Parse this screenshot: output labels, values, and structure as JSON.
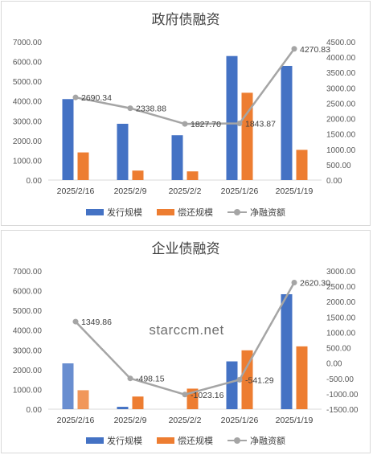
{
  "watermark": "starccm.net",
  "chart_data": [
    {
      "type": "bar",
      "title": "政府债融资",
      "categories": [
        "2025/2/16",
        "2025/2/9",
        "2025/2/2",
        "2025/1/26",
        "2025/1/19"
      ],
      "series": [
        {
          "name": "发行规模",
          "type": "bar",
          "axis": "left",
          "color": "#4472c4",
          "values": [
            4100,
            2850,
            2270,
            6280,
            5780
          ]
        },
        {
          "name": "偿还规模",
          "type": "bar",
          "axis": "left",
          "color": "#ed7d31",
          "values": [
            1400,
            480,
            440,
            4420,
            1530
          ]
        },
        {
          "name": "净融资额",
          "type": "line",
          "axis": "right",
          "color": "#a5a5a5",
          "values": [
            2690.34,
            2338.88,
            1827.7,
            1843.87,
            4270.83
          ],
          "labels": [
            "2690.34",
            "2338.88",
            "1827.70",
            "1843.87",
            "4270.83"
          ]
        }
      ],
      "yleft": {
        "min": 0,
        "max": 7000,
        "ticks": [
          "0.00",
          "1000.00",
          "2000.00",
          "3000.00",
          "4000.00",
          "5000.00",
          "6000.00",
          "7000.00"
        ]
      },
      "yright": {
        "min": 0,
        "max": 4500,
        "ticks": [
          "0.00",
          "500.00",
          "1000.00",
          "1500.00",
          "2000.00",
          "2500.00",
          "3000.00",
          "3500.00",
          "4000.00",
          "4500.00"
        ]
      },
      "grid": false,
      "legend": "bottom"
    },
    {
      "type": "bar",
      "title": "企业债融资",
      "categories": [
        "2025/2/16",
        "2025/2/9",
        "2025/2/2",
        "2025/1/26",
        "2025/1/19"
      ],
      "series": [
        {
          "name": "发行规模",
          "type": "bar",
          "axis": "left",
          "color": "#4472c4",
          "values": [
            2320,
            120,
            0,
            2420,
            5820
          ]
        },
        {
          "name": "偿还规模",
          "type": "bar",
          "axis": "left",
          "color": "#ed7d31",
          "values": [
            960,
            640,
            1040,
            2980,
            3180
          ]
        },
        {
          "name": "净融资额",
          "type": "line",
          "axis": "right",
          "color": "#a5a5a5",
          "values": [
            1349.86,
            -498.15,
            -1023.16,
            -541.29,
            2620.3
          ],
          "labels": [
            "1349.86",
            "-498.15",
            "-1023.16",
            "-541.29",
            "2620.30"
          ]
        }
      ],
      "yleft": {
        "min": 0,
        "max": 7000,
        "ticks": [
          "0.00",
          "1000.00",
          "2000.00",
          "3000.00",
          "4000.00",
          "5000.00",
          "6000.00",
          "7000.00"
        ]
      },
      "yright": {
        "min": -1500,
        "max": 3000,
        "ticks": [
          "-1500.00",
          "-1000.00",
          "-500.00",
          "0.00",
          "500.00",
          "1000.00",
          "1500.00",
          "2000.00",
          "2500.00",
          "3000.00"
        ]
      },
      "grid": false,
      "legend": "bottom"
    }
  ]
}
